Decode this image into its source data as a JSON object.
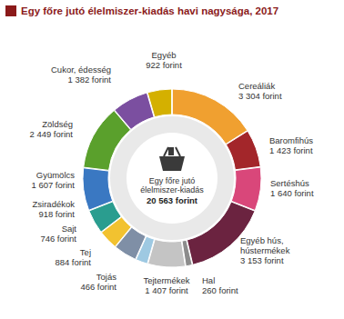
{
  "chart_data": {
    "type": "donut",
    "title": "Egy főre jutó élelmiszer-kiadás havi nagysága, 2017",
    "categories": [
      "Cereáliák",
      "Baromfihús",
      "Sertéshús",
      "Egyéb hús, hústermékek",
      "Hal",
      "Tejtermékek",
      "Tojás",
      "Tej",
      "Sajt",
      "Zsiradékok",
      "Gyümölcs",
      "Zöldség",
      "Cukor, édesség",
      "Egyéb"
    ],
    "values": [
      3304,
      1423,
      1640,
      3153,
      260,
      1407,
      466,
      884,
      746,
      918,
      1607,
      2449,
      1382,
      922
    ],
    "value_labels": [
      "3 304 forint",
      "1 423 forint",
      "1 640 forint",
      "3 153 forint",
      "260 forint",
      "1 407 forint",
      "466 forint",
      "884 forint",
      "746 forint",
      "918 forint",
      "1 607 forint",
      "2 449 forint",
      "1 382 forint",
      "922 forint"
    ],
    "colors": [
      "#f0a030",
      "#a3262a",
      "#d9477a",
      "#6b2340",
      "#8c8c8c",
      "#c4c4c4",
      "#9ec9e2",
      "#7f8fa6",
      "#f2c230",
      "#2a9d8f",
      "#3a78c2",
      "#5aa02c",
      "#7b4fa0",
      "#d4b000"
    ],
    "data_labels": true,
    "center_text": "Egy főre jutó élelmiszer-kiadás",
    "total": 20563,
    "total_label": "20 563 forint"
  }
}
